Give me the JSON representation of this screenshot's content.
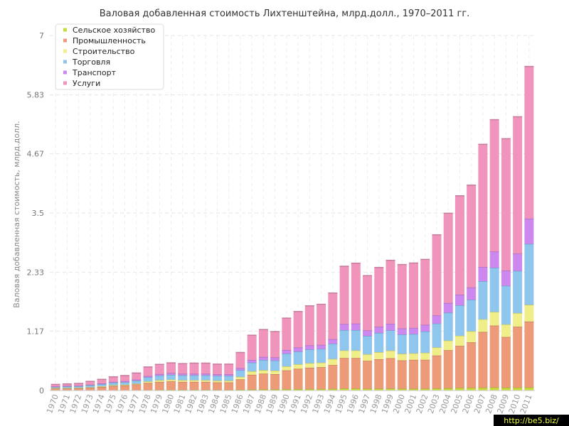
{
  "chart_data": {
    "type": "bar",
    "stacked": true,
    "title": "Валовая добавленная стоимость Лихтенштейна, млрд.долл., 1970–2011 гг.",
    "xlabel": "",
    "ylabel": "Валовая добавленная стоимость, млрд.долл.",
    "ylim": [
      0,
      7
    ],
    "yticks": [
      "0",
      "1.17",
      "2.33",
      "3.5",
      "4.67",
      "5.83",
      "7"
    ],
    "grid": true,
    "legend_position": "top-left",
    "categories": [
      "1970",
      "1971",
      "1972",
      "1973",
      "1974",
      "1975",
      "1976",
      "1977",
      "1978",
      "1979",
      "1980",
      "1981",
      "1982",
      "1983",
      "1984",
      "1985",
      "1986",
      "1987",
      "1988",
      "1989",
      "1990",
      "1991",
      "1992",
      "1993",
      "1994",
      "1995",
      "1996",
      "1997",
      "1998",
      "1999",
      "2000",
      "2001",
      "2002",
      "2003",
      "2004",
      "2005",
      "2006",
      "2007",
      "2008",
      "2009",
      "2010",
      "2011"
    ],
    "series": [
      {
        "name": "Сельское хозяйство",
        "color": "#c8dc3c",
        "values": [
          0.003,
          0.003,
          0.004,
          0.004,
          0.005,
          0.006,
          0.007,
          0.008,
          0.01,
          0.012,
          0.013,
          0.012,
          0.012,
          0.012,
          0.011,
          0.011,
          0.015,
          0.02,
          0.022,
          0.022,
          0.027,
          0.028,
          0.03,
          0.03,
          0.032,
          0.04,
          0.04,
          0.035,
          0.036,
          0.037,
          0.034,
          0.034,
          0.035,
          0.04,
          0.045,
          0.05,
          0.05,
          0.055,
          0.06,
          0.055,
          0.058,
          0.06
        ]
      },
      {
        "name": "Промышленность",
        "color": "#ec9a78",
        "values": [
          0.037,
          0.037,
          0.041,
          0.051,
          0.065,
          0.084,
          0.093,
          0.112,
          0.14,
          0.158,
          0.167,
          0.158,
          0.158,
          0.158,
          0.149,
          0.149,
          0.205,
          0.29,
          0.31,
          0.3,
          0.37,
          0.4,
          0.42,
          0.43,
          0.47,
          0.6,
          0.6,
          0.55,
          0.58,
          0.6,
          0.56,
          0.57,
          0.57,
          0.65,
          0.75,
          0.83,
          0.9,
          1.1,
          1.22,
          1.0,
          1.2,
          1.3
        ]
      },
      {
        "name": "Строительство",
        "color": "#f0ee88",
        "values": [
          0.01,
          0.01,
          0.01,
          0.01,
          0.015,
          0.015,
          0.015,
          0.015,
          0.03,
          0.035,
          0.035,
          0.035,
          0.035,
          0.035,
          0.035,
          0.035,
          0.05,
          0.07,
          0.07,
          0.07,
          0.08,
          0.09,
          0.09,
          0.09,
          0.12,
          0.15,
          0.15,
          0.13,
          0.14,
          0.15,
          0.13,
          0.13,
          0.14,
          0.16,
          0.19,
          0.2,
          0.22,
          0.25,
          0.27,
          0.25,
          0.27,
          0.33
        ]
      },
      {
        "name": "Торговля",
        "color": "#8fc6ee",
        "values": [
          0.02,
          0.03,
          0.03,
          0.04,
          0.04,
          0.05,
          0.05,
          0.06,
          0.08,
          0.09,
          0.095,
          0.095,
          0.095,
          0.095,
          0.095,
          0.095,
          0.13,
          0.17,
          0.2,
          0.2,
          0.25,
          0.25,
          0.27,
          0.27,
          0.3,
          0.4,
          0.4,
          0.36,
          0.38,
          0.4,
          0.38,
          0.38,
          0.42,
          0.47,
          0.55,
          0.6,
          0.62,
          0.75,
          0.87,
          0.76,
          0.83,
          1.2
        ]
      },
      {
        "name": "Транспорт",
        "color": "#cc88ee",
        "values": [
          0.01,
          0.01,
          0.01,
          0.01,
          0.015,
          0.015,
          0.02,
          0.02,
          0.025,
          0.03,
          0.035,
          0.03,
          0.03,
          0.03,
          0.03,
          0.03,
          0.04,
          0.05,
          0.06,
          0.06,
          0.07,
          0.08,
          0.08,
          0.08,
          0.09,
          0.12,
          0.13,
          0.11,
          0.12,
          0.13,
          0.12,
          0.12,
          0.13,
          0.16,
          0.19,
          0.21,
          0.24,
          0.28,
          0.32,
          0.3,
          0.34,
          0.5
        ]
      },
      {
        "name": "Услуги",
        "color": "#f094bc",
        "values": [
          0.04,
          0.04,
          0.045,
          0.065,
          0.08,
          0.1,
          0.11,
          0.13,
          0.18,
          0.19,
          0.2,
          0.2,
          0.21,
          0.21,
          0.2,
          0.2,
          0.31,
          0.49,
          0.54,
          0.51,
          0.63,
          0.71,
          0.78,
          0.8,
          0.91,
          1.14,
          1.19,
          1.08,
          1.17,
          1.25,
          1.26,
          1.28,
          1.29,
          1.59,
          1.77,
          1.95,
          2.02,
          2.42,
          2.6,
          2.6,
          2.7,
          3.0
        ]
      }
    ]
  },
  "watermark": "http://be5.biz/"
}
